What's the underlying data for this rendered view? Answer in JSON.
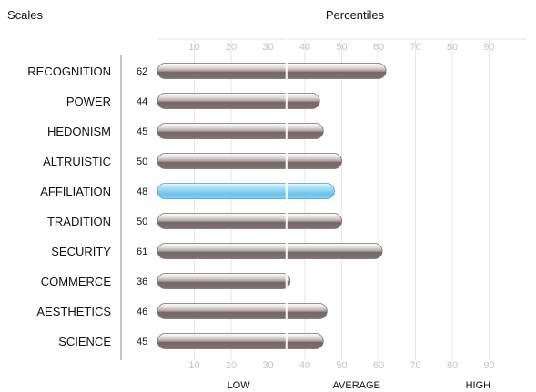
{
  "header": {
    "scales_title": "Scales",
    "percentiles_title": "Percentiles"
  },
  "chart_data": {
    "type": "bar",
    "orientation": "horizontal",
    "categories": [
      "RECOGNITION",
      "POWER",
      "HEDONISM",
      "ALTRUISTIC",
      "AFFILIATION",
      "TRADITION",
      "SECURITY",
      "COMMERCE",
      "AESTHETICS",
      "SCIENCE"
    ],
    "values": [
      62,
      44,
      45,
      50,
      48,
      50,
      61,
      36,
      46,
      45
    ],
    "value_labels": [
      "62",
      "44",
      "45",
      "50",
      "48",
      "50",
      "61",
      "36",
      "46",
      "45"
    ],
    "highlighted_category": "AFFILIATION",
    "xlim": [
      0,
      100
    ],
    "ticks": [
      "10",
      "20",
      "30",
      "40",
      "50",
      "60",
      "70",
      "80",
      "90"
    ],
    "reference_line": 35,
    "zones": [
      "LOW",
      "AVERAGE",
      "HIGH"
    ],
    "grid": true,
    "colors": {
      "bar": "#8c7e7e",
      "bar_highlight": "#6fc3ea",
      "grid": "#e6e6e6",
      "axis": "#888888",
      "tick_text": "#c4c4c4"
    }
  }
}
